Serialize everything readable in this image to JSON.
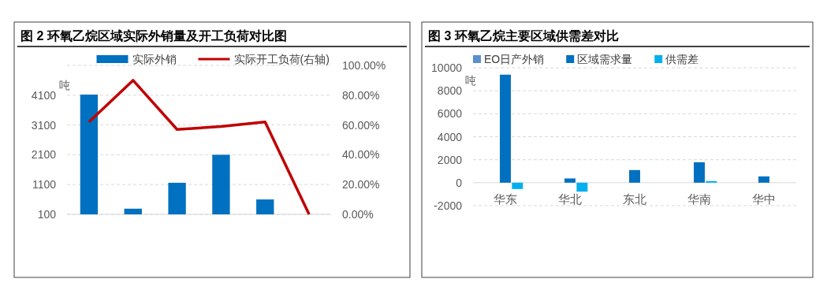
{
  "chart_data": [
    {
      "type": "bar",
      "title": "图 2 环氧乙烷区域实际外销量及开工负荷对比图",
      "ylabel": "吨",
      "categories": [
        null,
        null,
        null,
        null,
        null,
        null
      ],
      "series": [
        {
          "name": "实际外销",
          "color": "#0070c0",
          "values": [
            4120,
            290,
            1160,
            2100,
            600,
            null
          ]
        },
        {
          "name": "实际开工负荷(右轴)",
          "type": "line",
          "axis": "y2",
          "color": "#c00000",
          "values": [
            62,
            90,
            57,
            59,
            62,
            0
          ]
        }
      ],
      "ylim": [
        100,
        5100
      ],
      "yticks": [
        100,
        1100,
        2100,
        3100,
        4100,
        {
          "value": 5100,
          "label": null
        }
      ],
      "y2lim": [
        0,
        100
      ],
      "y2ticks": [
        {
          "value": 0,
          "label": "0.00%"
        },
        {
          "value": 20,
          "label": "20.00%"
        },
        {
          "value": 40,
          "label": "40.00%"
        },
        {
          "value": 60,
          "label": "60.00%"
        },
        {
          "value": 80,
          "label": "80.00%"
        },
        {
          "value": 100,
          "label": "100.00%"
        }
      ],
      "grid": "y",
      "legend": "top",
      "marker": "none"
    },
    {
      "type": "bar",
      "title": "图 3 环氧乙烷主要区域供需差对比",
      "ylabel": "吨",
      "categories": [
        "华东",
        "华北",
        "东北",
        "华南",
        "华中"
      ],
      "series": [
        {
          "name": "EO日产外销",
          "color": "#5b8fd0",
          "values": [
            null,
            null,
            null,
            null,
            null
          ]
        },
        {
          "name": "区域需求量",
          "color": "#0070c0",
          "values": [
            9400,
            370,
            1100,
            1780,
            550
          ]
        },
        {
          "name": "供需差",
          "color": "#00b0f0",
          "values": [
            -550,
            -780,
            null,
            140,
            null
          ]
        }
      ],
      "ylim": [
        -2000,
        10000
      ],
      "yticks": [
        -2000,
        0,
        2000,
        4000,
        6000,
        8000,
        10000
      ],
      "grid": "y",
      "legend": "top"
    }
  ]
}
